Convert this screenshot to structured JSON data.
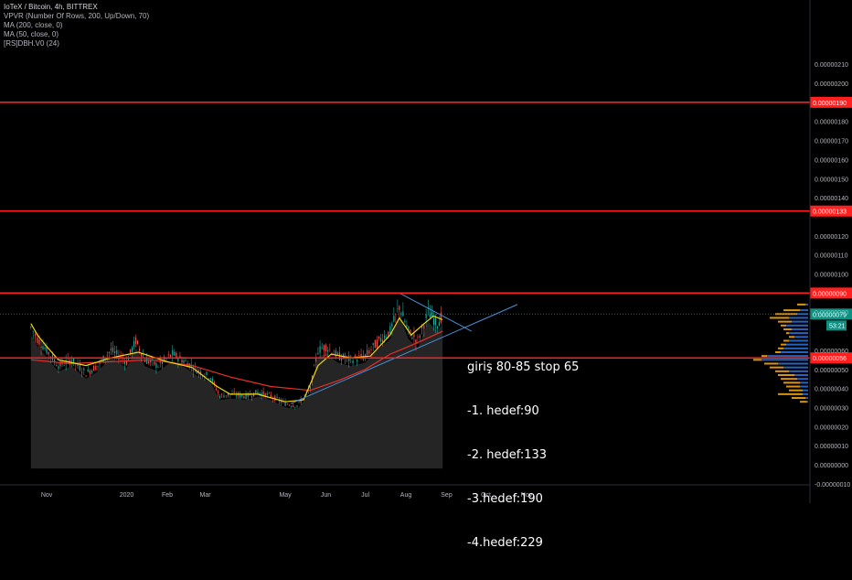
{
  "symbol": {
    "title": "IoTeX / Bitcoin, 4h, BITTREX",
    "indicators": [
      "VPVR (Number Of Rows, 200, Up/Down, 70)",
      "MA (200, close, 0)",
      "MA (50, close, 0)",
      "[RS]DBH.V0 (24)"
    ]
  },
  "annotation_lines": [
    "giriş 80-85 stop 65",
    "-1. hedef:90",
    "-2. hedef:133",
    "-3.hedef:190",
    "-4.hedef:229"
  ],
  "colors": {
    "background": "#000000",
    "hline": "#ff1f1f",
    "ma_fast": "#f5d60a",
    "ma_slow": "#e5302a",
    "trendline": "#4a8fd6",
    "candle_up": "#26a69a",
    "candle_down": "#ef5350",
    "vp_up": "#2a6fd6",
    "vp_down": "#f2a416",
    "price_label": "#0e8f82"
  },
  "chart_data": {
    "type": "candlestick",
    "y_axis": {
      "ylim": [
        -1e-07,
        2.18e-06
      ],
      "tick_labels": [
        "0.00000210",
        "0.00000200",
        "0.00000180",
        "0.00000170",
        "0.00000160",
        "0.00000150",
        "0.00000140",
        "0.00000120",
        "0.00000110",
        "0.00000100",
        "0.00000080",
        "0.00000060",
        "0.00000050",
        "0.00000040",
        "0.00000030",
        "0.00000020",
        "0.00000010",
        "0.00000000",
        "-0.00000010"
      ]
    },
    "x_axis": {
      "tick_labels": [
        "Nov",
        "2020",
        "Feb",
        "Mar",
        "May",
        "Jun",
        "Jul",
        "Aug",
        "Sep",
        "Oct",
        "Nov"
      ]
    },
    "horizontal_lines": [
      {
        "value": 1.9e-06,
        "label": "0.00000190"
      },
      {
        "value": 1.33e-06,
        "label": "0.00000133"
      },
      {
        "value": 9e-07,
        "label": "0.00000090"
      },
      {
        "value": 5.6e-07,
        "label": "0.00000056"
      }
    ],
    "current_price": {
      "value": 7.9e-07,
      "label": "0.00000079",
      "countdown": "53:21"
    },
    "price_series": [
      [
        "2019-10-20",
        7.2e-07
      ],
      [
        "2019-10-25",
        6.6e-07
      ],
      [
        "2019-11-01",
        6e-07
      ],
      [
        "2019-11-10",
        5.2e-07
      ],
      [
        "2019-11-20",
        5.5e-07
      ],
      [
        "2019-12-01",
        4.8e-07
      ],
      [
        "2019-12-10",
        5.2e-07
      ],
      [
        "2019-12-20",
        6e-07
      ],
      [
        "2020-01-01",
        5.4e-07
      ],
      [
        "2020-01-08",
        6.5e-07
      ],
      [
        "2020-01-15",
        5.5e-07
      ],
      [
        "2020-01-25",
        5.2e-07
      ],
      [
        "2020-02-05",
        5.8e-07
      ],
      [
        "2020-02-15",
        5.4e-07
      ],
      [
        "2020-02-25",
        4.9e-07
      ],
      [
        "2020-03-05",
        4.6e-07
      ],
      [
        "2020-03-12",
        3.6e-07
      ],
      [
        "2020-03-20",
        3.7e-07
      ],
      [
        "2020-04-01",
        3.6e-07
      ],
      [
        "2020-04-10",
        3.8e-07
      ],
      [
        "2020-04-20",
        3.6e-07
      ],
      [
        "2020-05-01",
        3.2e-07
      ],
      [
        "2020-05-10",
        3.1e-07
      ],
      [
        "2020-05-20",
        4e-07
      ],
      [
        "2020-05-26",
        6e-07
      ],
      [
        "2020-06-01",
        6.2e-07
      ],
      [
        "2020-06-10",
        5.7e-07
      ],
      [
        "2020-06-20",
        5.5e-07
      ],
      [
        "2020-07-01",
        5.7e-07
      ],
      [
        "2020-07-10",
        6.4e-07
      ],
      [
        "2020-07-20",
        7e-07
      ],
      [
        "2020-07-27",
        8.3e-07
      ],
      [
        "2020-08-03",
        7e-07
      ],
      [
        "2020-08-10",
        6.5e-07
      ],
      [
        "2020-08-18",
        8e-07
      ],
      [
        "2020-08-25",
        7.4e-07
      ],
      [
        "2020-08-29",
        7.9e-07
      ]
    ],
    "ma_fast": [
      [
        "2019-10-20",
        7.4e-07
      ],
      [
        "2019-10-25",
        6.8e-07
      ],
      [
        "2019-11-01",
        6.2e-07
      ],
      [
        "2019-11-10",
        5.5e-07
      ],
      [
        "2019-12-01",
        5.2e-07
      ],
      [
        "2019-12-20",
        5.6e-07
      ],
      [
        "2020-01-10",
        5.9e-07
      ],
      [
        "2020-02-01",
        5.4e-07
      ],
      [
        "2020-02-20",
        5.1e-07
      ],
      [
        "2020-03-10",
        4.1e-07
      ],
      [
        "2020-03-20",
        3.7e-07
      ],
      [
        "2020-04-10",
        3.7e-07
      ],
      [
        "2020-05-01",
        3.3e-07
      ],
      [
        "2020-05-15",
        3.4e-07
      ],
      [
        "2020-05-26",
        5.2e-07
      ],
      [
        "2020-06-05",
        5.8e-07
      ],
      [
        "2020-06-20",
        5.6e-07
      ],
      [
        "2020-07-05",
        5.7e-07
      ],
      [
        "2020-07-20",
        6.8e-07
      ],
      [
        "2020-07-27",
        7.7e-07
      ],
      [
        "2020-08-05",
        6.8e-07
      ],
      [
        "2020-08-15",
        7.4e-07
      ],
      [
        "2020-08-22",
        7.8e-07
      ],
      [
        "2020-08-29",
        7.6e-07
      ]
    ],
    "ma_slow": [
      [
        "2019-10-20",
        5.5e-07
      ],
      [
        "2019-11-20",
        5.3e-07
      ],
      [
        "2019-12-20",
        5.4e-07
      ],
      [
        "2020-01-20",
        5.5e-07
      ],
      [
        "2020-02-20",
        5.2e-07
      ],
      [
        "2020-03-20",
        4.6e-07
      ],
      [
        "2020-04-20",
        4.1e-07
      ],
      [
        "2020-05-20",
        3.9e-07
      ],
      [
        "2020-06-10",
        4.4e-07
      ],
      [
        "2020-07-01",
        5e-07
      ],
      [
        "2020-07-20",
        5.8e-07
      ],
      [
        "2020-08-10",
        6.4e-07
      ],
      [
        "2020-08-29",
        7e-07
      ]
    ],
    "trendlines": [
      {
        "from": [
          "2020-05-05",
          3.2e-07
        ],
        "to": [
          "2020-10-25",
          8.4e-07
        ]
      },
      {
        "from": [
          "2020-07-27",
          9e-07
        ],
        "to": [
          "2020-09-20",
          7e-07
        ]
      }
    ],
    "volume_profile": [
      [
        8.4e-07,
        0.2,
        0.05
      ],
      [
        8.1e-07,
        0.45,
        0.15
      ],
      [
        7.9e-07,
        0.6,
        0.2
      ],
      [
        7.7e-07,
        0.7,
        0.35
      ],
      [
        7.5e-07,
        0.55,
        0.3
      ],
      [
        7.3e-07,
        0.5,
        0.4
      ],
      [
        7.1e-07,
        0.45,
        0.3
      ],
      [
        6.9e-07,
        0.4,
        0.35
      ],
      [
        6.7e-07,
        0.35,
        0.25
      ],
      [
        6.5e-07,
        0.45,
        0.35
      ],
      [
        6.3e-07,
        0.5,
        0.4
      ],
      [
        6.1e-07,
        0.55,
        0.45
      ],
      [
        5.9e-07,
        0.6,
        0.5
      ],
      [
        5.7e-07,
        0.85,
        0.75
      ],
      [
        5.5e-07,
        1.0,
        0.85
      ],
      [
        5.3e-07,
        0.8,
        0.55
      ],
      [
        5.1e-07,
        0.7,
        0.45
      ],
      [
        4.9e-07,
        0.6,
        0.35
      ],
      [
        4.7e-07,
        0.55,
        0.25
      ],
      [
        4.5e-07,
        0.5,
        0.2
      ],
      [
        4.3e-07,
        0.45,
        0.15
      ],
      [
        4.1e-07,
        0.4,
        0.15
      ],
      [
        3.9e-07,
        0.35,
        0.1
      ],
      [
        3.7e-07,
        0.55,
        0.1
      ],
      [
        3.5e-07,
        0.3,
        0.05
      ],
      [
        3.3e-07,
        0.15,
        0.02
      ]
    ]
  }
}
